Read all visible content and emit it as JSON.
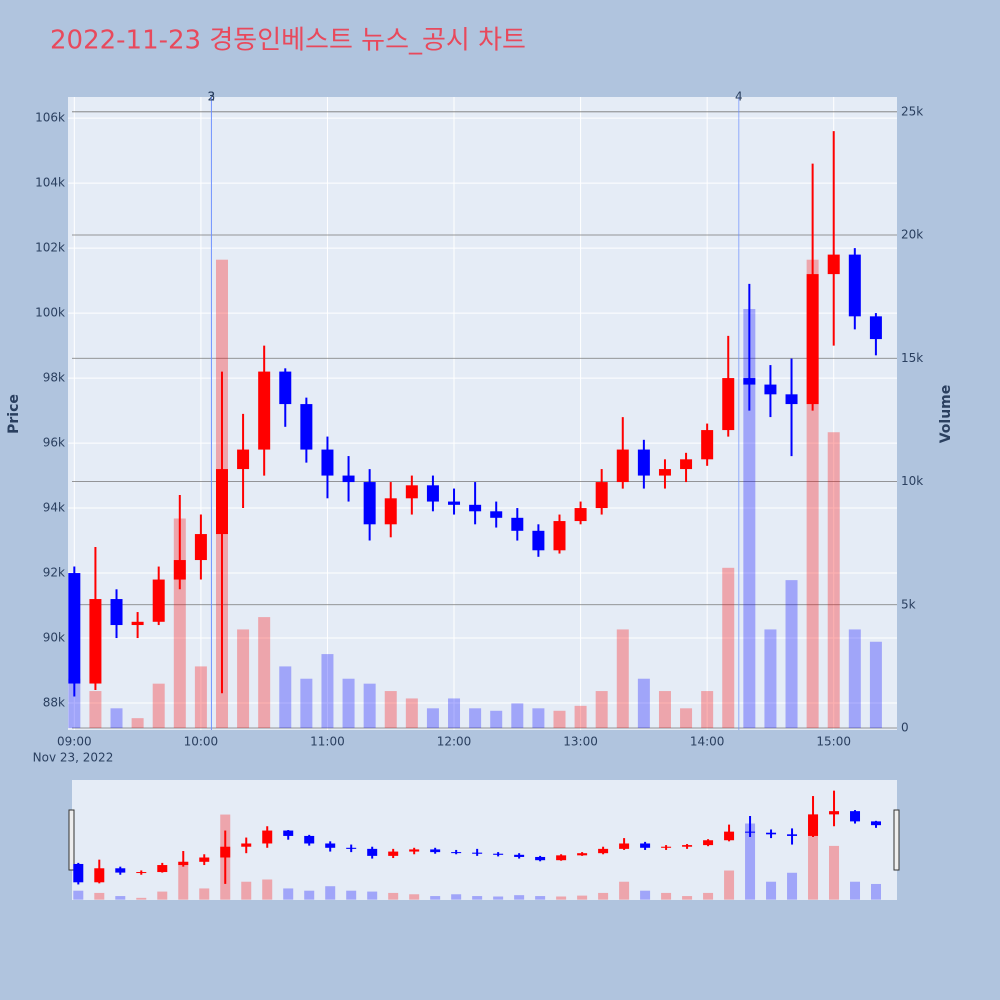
{
  "chart_data": {
    "type": "candlestick",
    "title": "2022-11-23 경동인베스트 뉴스_공시 차트",
    "y_title": "Price",
    "y2_title": "Volume",
    "date_label": "Nov 23, 2022",
    "increasing_color": "#ff0000",
    "decreasing_color": "#0000ff",
    "x": [
      "2022-11-23 09:00",
      "2022-11-23 09:10",
      "2022-11-23 09:20",
      "2022-11-23 09:30",
      "2022-11-23 09:40",
      "2022-11-23 09:50",
      "2022-11-23 10:00",
      "2022-11-23 10:10",
      "2022-11-23 10:20",
      "2022-11-23 10:30",
      "2022-11-23 10:40",
      "2022-11-23 10:50",
      "2022-11-23 11:00",
      "2022-11-23 11:10",
      "2022-11-23 11:20",
      "2022-11-23 11:30",
      "2022-11-23 11:40",
      "2022-11-23 11:50",
      "2022-11-23 12:00",
      "2022-11-23 12:10",
      "2022-11-23 12:20",
      "2022-11-23 12:30",
      "2022-11-23 12:40",
      "2022-11-23 12:50",
      "2022-11-23 13:00",
      "2022-11-23 13:10",
      "2022-11-23 13:20",
      "2022-11-23 13:30",
      "2022-11-23 13:40",
      "2022-11-23 13:50",
      "2022-11-23 14:00",
      "2022-11-23 14:10",
      "2022-11-23 14:20",
      "2022-11-23 14:30",
      "2022-11-23 14:40",
      "2022-11-23 14:50",
      "2022-11-23 15:00",
      "2022-11-23 15:10",
      "2022-11-23 15:20"
    ],
    "open": [
      92000,
      88600,
      91200,
      90400,
      90500,
      91800,
      92400,
      93200,
      95200,
      95800,
      98200,
      97200,
      95800,
      95000,
      94800,
      93500,
      94300,
      94700,
      94200,
      94100,
      93900,
      93700,
      93300,
      92700,
      93600,
      94000,
      94800,
      95800,
      95000,
      95200,
      95500,
      96400,
      98000,
      97800,
      97500,
      97200,
      101200,
      101800,
      99900
    ],
    "high": [
      92200,
      92800,
      91500,
      90800,
      92200,
      94400,
      93800,
      98200,
      96900,
      99000,
      98300,
      97400,
      96200,
      95600,
      95200,
      94800,
      95000,
      95000,
      94600,
      94800,
      94200,
      94000,
      93500,
      93800,
      94200,
      95200,
      96800,
      96100,
      95500,
      95700,
      96600,
      99300,
      100900,
      98400,
      98600,
      104600,
      105600,
      102000,
      100000
    ],
    "low": [
      88200,
      88400,
      90000,
      90000,
      90400,
      91500,
      91800,
      88300,
      94000,
      95000,
      96500,
      95400,
      94300,
      94200,
      93000,
      93100,
      93800,
      93900,
      93800,
      93500,
      93400,
      93000,
      92500,
      92600,
      93500,
      93800,
      94600,
      94600,
      94600,
      94800,
      95300,
      96200,
      97000,
      96800,
      95600,
      97000,
      99000,
      99500,
      98700
    ],
    "close": [
      88600,
      91200,
      90400,
      90500,
      91800,
      92400,
      93200,
      95200,
      95800,
      98200,
      97200,
      95800,
      95000,
      94800,
      93500,
      94300,
      94700,
      94200,
      94100,
      93900,
      93700,
      93300,
      92700,
      93600,
      94000,
      94800,
      95800,
      95000,
      95200,
      95500,
      96400,
      98000,
      97800,
      97500,
      97200,
      101200,
      101800,
      99900,
      99200
    ],
    "volume": [
      2000,
      1500,
      800,
      400,
      1800,
      8500,
      2500,
      19000,
      4000,
      4500,
      2500,
      2000,
      3000,
      2000,
      1800,
      1500,
      1200,
      800,
      1200,
      800,
      700,
      1000,
      800,
      700,
      900,
      1500,
      4000,
      2000,
      1500,
      800,
      1500,
      6500,
      17000,
      4000,
      6000,
      19000,
      12000,
      4000,
      3500
    ],
    "markers": [
      {
        "x": "2022-11-23 10:05",
        "label": "2"
      },
      {
        "x": "2022-11-23 10:05",
        "label": "3"
      },
      {
        "x": "2022-11-23 14:15",
        "label": "4"
      }
    ],
    "xlim": [
      "2022-11-23 08:57",
      "2022-11-23 15:30"
    ],
    "xticks": [
      {
        "value": "2022-11-23 09:00",
        "label": "09:00"
      },
      {
        "value": "2022-11-23 10:00",
        "label": "10:00"
      },
      {
        "value": "2022-11-23 11:00",
        "label": "11:00"
      },
      {
        "value": "2022-11-23 12:00",
        "label": "12:00"
      },
      {
        "value": "2022-11-23 13:00",
        "label": "13:00"
      },
      {
        "value": "2022-11-23 14:00",
        "label": "14:00"
      },
      {
        "value": "2022-11-23 15:00",
        "label": "15:00"
      }
    ],
    "ylim": [
      87170,
      106650
    ],
    "yticks": [
      {
        "value": 88000,
        "label": "88k"
      },
      {
        "value": 90000,
        "label": "90k"
      },
      {
        "value": 92000,
        "label": "92k"
      },
      {
        "value": 94000,
        "label": "94k"
      },
      {
        "value": 96000,
        "label": "96k"
      },
      {
        "value": 98000,
        "label": "98k"
      },
      {
        "value": 100000,
        "label": "100k"
      },
      {
        "value": 102000,
        "label": "102k"
      },
      {
        "value": 104000,
        "label": "104k"
      },
      {
        "value": 106000,
        "label": "106k"
      }
    ],
    "y2lim": [
      -80,
      25600
    ],
    "y2ticks": [
      0,
      {
        "value": 5000,
        "label": "5k"
      },
      {
        "value": 10000,
        "label": "10k"
      },
      {
        "value": 15000,
        "label": "15k"
      },
      {
        "value": 20000,
        "label": "20k"
      },
      {
        "value": 25000,
        "label": "25k"
      }
    ],
    "grid": true,
    "rangeslider": true
  }
}
